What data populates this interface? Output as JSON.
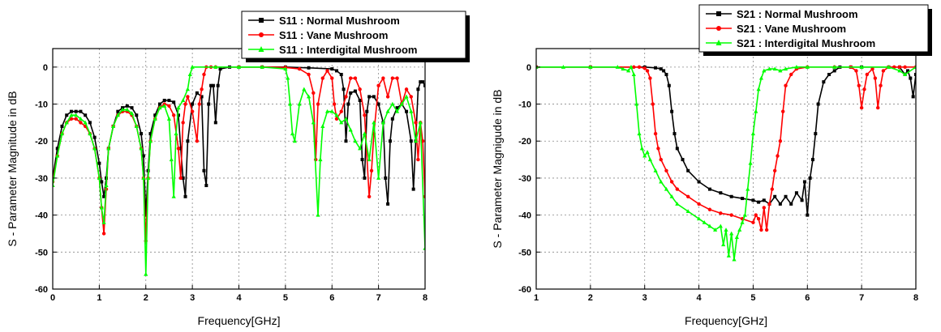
{
  "chart_data": [
    {
      "type": "line",
      "title": "",
      "xlabel": "Frequency[GHz]",
      "ylabel": "S - Parameter Magnitude in dB",
      "xlim": [
        0,
        8
      ],
      "ylim": [
        -60,
        5
      ],
      "xticks": [
        0,
        1,
        2,
        3,
        4,
        5,
        6,
        7,
        8
      ],
      "yticks": [
        0,
        -10,
        -20,
        -30,
        -40,
        -50,
        -60
      ],
      "grid": true,
      "legend_position": "top-right",
      "series": [
        {
          "name": "S11 : Normal Mushroom",
          "color": "#000000",
          "marker": "square",
          "x": [
            0.0,
            0.1,
            0.2,
            0.3,
            0.4,
            0.5,
            0.6,
            0.7,
            0.8,
            0.9,
            1.0,
            1.05,
            1.1,
            1.15,
            1.2,
            1.3,
            1.4,
            1.5,
            1.6,
            1.7,
            1.8,
            1.9,
            1.95,
            2.0,
            2.05,
            2.1,
            2.2,
            2.3,
            2.4,
            2.5,
            2.6,
            2.7,
            2.75,
            2.8,
            2.85,
            2.9,
            3.0,
            3.1,
            3.2,
            3.25,
            3.3,
            3.35,
            3.4,
            3.45,
            3.5,
            3.55,
            3.6,
            3.8,
            4.0,
            4.5,
            5.0,
            5.5,
            6.0,
            6.1,
            6.2,
            6.25,
            6.3,
            6.35,
            6.4,
            6.5,
            6.6,
            6.65,
            6.7,
            6.75,
            6.8,
            6.9,
            7.0,
            7.1,
            7.15,
            7.2,
            7.25,
            7.3,
            7.4,
            7.5,
            7.6,
            7.7,
            7.75,
            7.8,
            7.85,
            7.9,
            7.95,
            8.0
          ],
          "y": [
            -30,
            -22,
            -16,
            -13,
            -12,
            -12,
            -12,
            -13,
            -15,
            -19,
            -26,
            -31,
            -35,
            -30,
            -22,
            -16,
            -12,
            -11,
            -10.5,
            -11,
            -13,
            -18,
            -24,
            -40,
            -28,
            -18,
            -13,
            -10,
            -9,
            -9,
            -9.5,
            -13,
            -22,
            -30,
            -35,
            -20,
            -10,
            -7,
            -8,
            -28,
            -32,
            -10,
            -5,
            -5,
            -15,
            -5,
            -0.5,
            0,
            0,
            0,
            0,
            -0.2,
            -0.5,
            -1,
            -2,
            -6,
            -20,
            -10,
            -7,
            -6.5,
            -9,
            -25,
            -30,
            -12,
            -8,
            -8,
            -10,
            -15,
            -30,
            -37,
            -20,
            -14,
            -11,
            -10,
            -12,
            -20,
            -33,
            -20,
            -6,
            -4,
            -4,
            -5
          ]
        },
        {
          "name": "S11 : Vane Mushroom",
          "color": "#ff0000",
          "marker": "circle",
          "x": [
            0.0,
            0.1,
            0.2,
            0.3,
            0.4,
            0.5,
            0.6,
            0.7,
            0.8,
            0.9,
            1.0,
            1.05,
            1.1,
            1.15,
            1.2,
            1.3,
            1.4,
            1.5,
            1.6,
            1.7,
            1.8,
            1.9,
            1.95,
            2.0,
            2.05,
            2.1,
            2.2,
            2.3,
            2.4,
            2.5,
            2.6,
            2.7,
            2.75,
            2.8,
            2.85,
            2.9,
            3.0,
            3.1,
            3.15,
            3.2,
            3.25,
            3.3,
            3.4,
            3.5,
            4.0,
            4.5,
            5.0,
            5.3,
            5.5,
            5.6,
            5.65,
            5.7,
            5.8,
            5.9,
            6.0,
            6.05,
            6.1,
            6.2,
            6.3,
            6.4,
            6.5,
            6.6,
            6.7,
            6.8,
            6.85,
            6.9,
            7.0,
            7.1,
            7.2,
            7.3,
            7.4,
            7.5,
            7.6,
            7.7,
            7.8,
            7.85,
            7.9,
            7.95,
            8.0
          ],
          "y": [
            -31,
            -24,
            -18,
            -15,
            -14,
            -14,
            -15,
            -16,
            -18,
            -22,
            -30,
            -38,
            -45,
            -33,
            -22,
            -16,
            -13,
            -12,
            -12,
            -13,
            -16,
            -22,
            -30,
            -47,
            -30,
            -20,
            -14,
            -11,
            -10,
            -10.5,
            -13,
            -22,
            -30,
            -15,
            -10,
            -8,
            -12,
            -20,
            -10,
            -6,
            -2,
            0,
            0,
            0,
            0,
            0,
            -0.1,
            -0.5,
            -2,
            -7,
            -25,
            -10,
            -3,
            -1,
            -3,
            -10,
            -14,
            -12,
            -8,
            -3,
            -3,
            -6,
            -13,
            -35,
            -28,
            -18,
            -5,
            -3,
            -8,
            -3,
            -3,
            -10,
            -6,
            -8,
            -15,
            -25,
            -15,
            -20,
            -35
          ]
        },
        {
          "name": "S11 : Interdigital Mushroom",
          "color": "#00ff00",
          "marker": "triangle",
          "x": [
            0.0,
            0.1,
            0.2,
            0.3,
            0.4,
            0.5,
            0.6,
            0.7,
            0.8,
            0.9,
            1.0,
            1.05,
            1.1,
            1.15,
            1.2,
            1.3,
            1.4,
            1.5,
            1.6,
            1.7,
            1.8,
            1.9,
            1.95,
            2.0,
            2.05,
            2.1,
            2.2,
            2.3,
            2.4,
            2.5,
            2.55,
            2.6,
            2.65,
            2.7,
            2.8,
            2.9,
            2.95,
            3.0,
            3.5,
            4.0,
            4.5,
            5.0,
            5.05,
            5.1,
            5.15,
            5.2,
            5.3,
            5.4,
            5.5,
            5.6,
            5.7,
            5.75,
            5.8,
            5.9,
            6.0,
            6.1,
            6.2,
            6.3,
            6.4,
            6.5,
            6.6,
            6.7,
            6.8,
            6.9,
            7.0,
            7.1,
            7.2,
            7.3,
            7.4,
            7.5,
            7.6,
            7.7,
            7.8,
            7.9,
            8.0
          ],
          "y": [
            -32,
            -24,
            -18,
            -15,
            -13,
            -13,
            -14,
            -15,
            -18,
            -22,
            -30,
            -38,
            -42,
            -32,
            -22,
            -16,
            -13,
            -11.5,
            -11.5,
            -12.5,
            -16,
            -22,
            -30,
            -56,
            -30,
            -20,
            -14,
            -11,
            -10.5,
            -14,
            -25,
            -35,
            -18,
            -11,
            -9,
            -6,
            -2,
            0,
            0,
            0,
            0,
            -0.5,
            -3,
            -10,
            -18,
            -20,
            -10,
            -6,
            -8,
            -15,
            -40,
            -25,
            -16,
            -12,
            -12,
            -13,
            -15,
            -14,
            -17,
            -20,
            -22,
            -18,
            -25,
            -15,
            -30,
            -15,
            -12,
            -10,
            -12,
            -10,
            -8,
            -12,
            -20,
            -15,
            -49
          ]
        }
      ]
    },
    {
      "type": "line",
      "title": "",
      "xlabel": "Frequency[GHz]",
      "ylabel": "S - Parameter Magnigude in dB",
      "xlim": [
        1,
        8
      ],
      "ylim": [
        -60,
        5
      ],
      "xticks": [
        1,
        2,
        3,
        4,
        5,
        6,
        7,
        8
      ],
      "yticks": [
        0,
        -10,
        -20,
        -30,
        -40,
        -50,
        -60
      ],
      "grid": true,
      "legend_position": "top-right",
      "series": [
        {
          "name": "S21 : Normal Mushroom",
          "color": "#000000",
          "marker": "square",
          "x": [
            1.0,
            2.0,
            3.0,
            3.2,
            3.3,
            3.35,
            3.4,
            3.45,
            3.5,
            3.55,
            3.6,
            3.7,
            3.8,
            4.0,
            4.2,
            4.4,
            4.6,
            4.8,
            5.0,
            5.1,
            5.2,
            5.3,
            5.4,
            5.5,
            5.6,
            5.7,
            5.8,
            5.9,
            5.95,
            6.0,
            6.05,
            6.1,
            6.15,
            6.2,
            6.3,
            6.4,
            6.5,
            6.6,
            6.8,
            7.0,
            7.5,
            7.7,
            7.8,
            7.85,
            7.9,
            7.95,
            8.0
          ],
          "y": [
            0,
            0,
            0,
            -0.2,
            -0.5,
            -1,
            -2,
            -5,
            -12,
            -18,
            -22,
            -25,
            -28,
            -31,
            -33,
            -34,
            -35,
            -35.5,
            -36,
            -36.5,
            -36,
            -37,
            -35,
            -37,
            -35,
            -37,
            -34,
            -36,
            -31,
            -40,
            -30,
            -25,
            -18,
            -10,
            -4,
            -2,
            -1,
            0,
            0,
            0,
            0,
            0,
            -2,
            -1,
            -3,
            -8,
            -2
          ]
        },
        {
          "name": "S21 : Vane Mushroom",
          "color": "#ff0000",
          "marker": "circle",
          "x": [
            1.0,
            2.0,
            2.8,
            2.9,
            3.0,
            3.05,
            3.1,
            3.15,
            3.2,
            3.25,
            3.3,
            3.4,
            3.5,
            3.6,
            3.8,
            4.0,
            4.2,
            4.4,
            4.6,
            4.8,
            5.0,
            5.05,
            5.1,
            5.15,
            5.2,
            5.25,
            5.3,
            5.35,
            5.4,
            5.45,
            5.5,
            5.55,
            5.6,
            5.7,
            5.8,
            6.0,
            6.5,
            6.8,
            6.9,
            6.95,
            7.0,
            7.05,
            7.1,
            7.2,
            7.25,
            7.3,
            7.35,
            7.4,
            7.5,
            7.6,
            7.7,
            7.8,
            8.0
          ],
          "y": [
            0,
            0,
            0,
            0,
            -0.3,
            -1,
            -3,
            -10,
            -18,
            -22,
            -25,
            -28,
            -31,
            -33,
            -35,
            -37,
            -38.5,
            -39.5,
            -40,
            -41,
            -42,
            -40,
            -41,
            -44,
            -38,
            -44,
            -37,
            -33,
            -28,
            -24,
            -20,
            -12,
            -5,
            -2,
            -0.5,
            0,
            0,
            0,
            -1,
            -5,
            -11,
            -6,
            -2,
            -0.5,
            -3,
            -11,
            -5,
            -1,
            0,
            0,
            0,
            0,
            0
          ]
        },
        {
          "name": "S21 : Interdigital Mushroom",
          "color": "#00ff00",
          "marker": "triangle",
          "x": [
            1.0,
            1.5,
            2.0,
            2.5,
            2.6,
            2.7,
            2.75,
            2.8,
            2.85,
            2.9,
            2.95,
            3.0,
            3.05,
            3.1,
            3.2,
            3.3,
            3.4,
            3.5,
            3.6,
            3.8,
            4.0,
            4.1,
            4.2,
            4.3,
            4.4,
            4.45,
            4.5,
            4.55,
            4.6,
            4.65,
            4.7,
            4.75,
            4.8,
            4.85,
            4.9,
            4.95,
            5.0,
            5.05,
            5.1,
            5.15,
            5.2,
            5.3,
            5.4,
            5.5,
            5.6,
            5.8,
            6.0,
            6.5,
            7.0,
            7.5,
            7.7,
            7.8,
            8.0
          ],
          "y": [
            0,
            0,
            0,
            0,
            -0.5,
            -1,
            0,
            -2,
            -10,
            -18,
            -22,
            -24,
            -23,
            -25,
            -28,
            -31,
            -33,
            -35,
            -37,
            -39,
            -41,
            -42,
            -43,
            -44,
            -43,
            -48,
            -44,
            -51,
            -45,
            -52,
            -46,
            -44,
            -42,
            -40,
            -33,
            -26,
            -18,
            -12,
            -6,
            -3,
            -1,
            -0.5,
            -0.5,
            -1,
            -0.5,
            0,
            0,
            0,
            0,
            0,
            -1,
            -2,
            0
          ]
        }
      ]
    }
  ]
}
